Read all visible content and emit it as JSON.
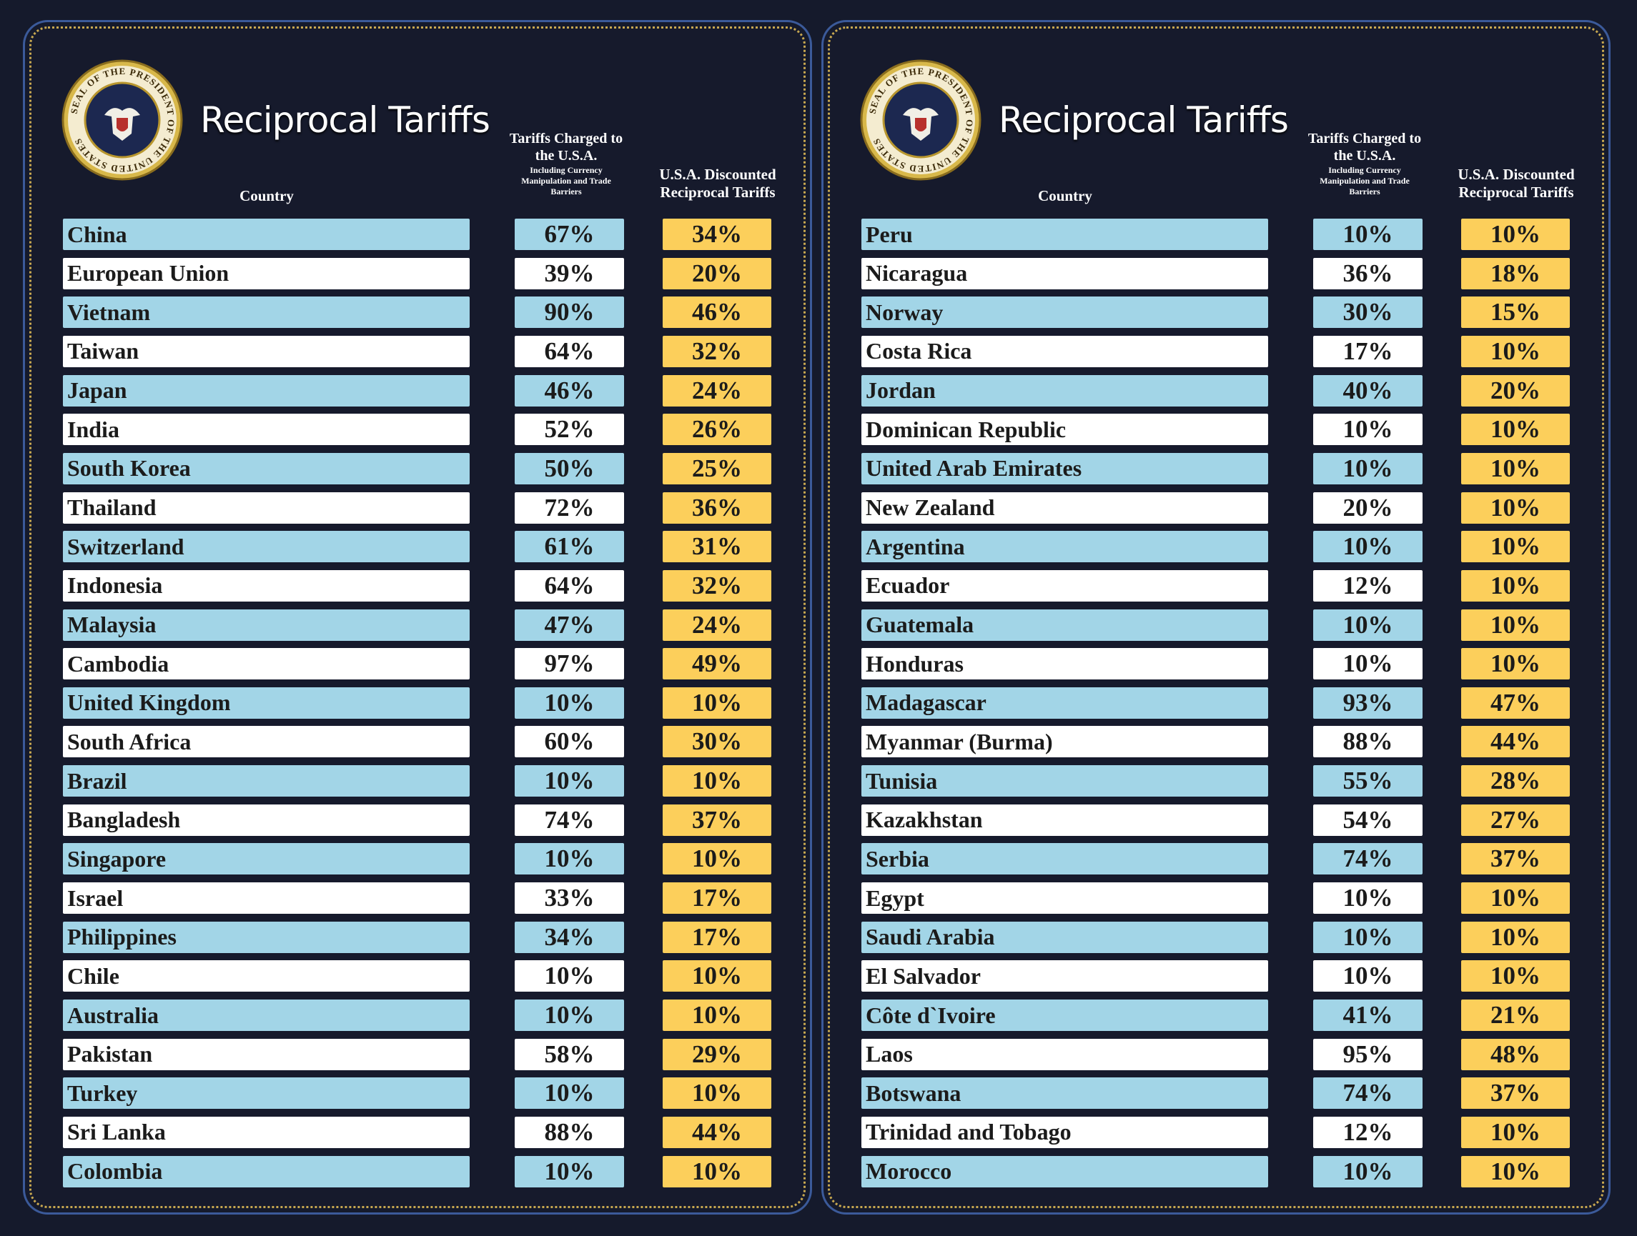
{
  "panels": [
    {
      "seal_text": "SEAL OF THE PRESIDENT OF THE UNITED STATES",
      "title": "Reciprocal Tariffs",
      "headers": {
        "country": "Country",
        "charged": "Tariffs Charged to the U.S.A.",
        "charged_note": "Including Currency Manipulation and Trade Barriers",
        "discounted": "U.S.A. Discounted Reciprocal Tariffs"
      },
      "rows": [
        [
          "China",
          "67%",
          "34%"
        ],
        [
          "European Union",
          "39%",
          "20%"
        ],
        [
          "Vietnam",
          "90%",
          "46%"
        ],
        [
          "Taiwan",
          "64%",
          "32%"
        ],
        [
          "Japan",
          "46%",
          "24%"
        ],
        [
          "India",
          "52%",
          "26%"
        ],
        [
          "South Korea",
          "50%",
          "25%"
        ],
        [
          "Thailand",
          "72%",
          "36%"
        ],
        [
          "Switzerland",
          "61%",
          "31%"
        ],
        [
          "Indonesia",
          "64%",
          "32%"
        ],
        [
          "Malaysia",
          "47%",
          "24%"
        ],
        [
          "Cambodia",
          "97%",
          "49%"
        ],
        [
          "United Kingdom",
          "10%",
          "10%"
        ],
        [
          "South Africa",
          "60%",
          "30%"
        ],
        [
          "Brazil",
          "10%",
          "10%"
        ],
        [
          "Bangladesh",
          "74%",
          "37%"
        ],
        [
          "Singapore",
          "10%",
          "10%"
        ],
        [
          "Israel",
          "33%",
          "17%"
        ],
        [
          "Philippines",
          "34%",
          "17%"
        ],
        [
          "Chile",
          "10%",
          "10%"
        ],
        [
          "Australia",
          "10%",
          "10%"
        ],
        [
          "Pakistan",
          "58%",
          "29%"
        ],
        [
          "Turkey",
          "10%",
          "10%"
        ],
        [
          "Sri Lanka",
          "88%",
          "44%"
        ],
        [
          "Colombia",
          "10%",
          "10%"
        ]
      ]
    },
    {
      "seal_text": "SEAL OF THE PRESIDENT OF THE UNITED STATES",
      "title": "Reciprocal Tariffs",
      "headers": {
        "country": "Country",
        "charged": "Tariffs Charged to the U.S.A.",
        "charged_note": "Including Currency Manipulation and Trade Barriers",
        "discounted": "U.S.A. Discounted Reciprocal Tariffs"
      },
      "rows": [
        [
          "Peru",
          "10%",
          "10%"
        ],
        [
          "Nicaragua",
          "36%",
          "18%"
        ],
        [
          "Norway",
          "30%",
          "15%"
        ],
        [
          "Costa Rica",
          "17%",
          "10%"
        ],
        [
          "Jordan",
          "40%",
          "20%"
        ],
        [
          "Dominican Republic",
          "10%",
          "10%"
        ],
        [
          "United Arab Emirates",
          "10%",
          "10%"
        ],
        [
          "New Zealand",
          "20%",
          "10%"
        ],
        [
          "Argentina",
          "10%",
          "10%"
        ],
        [
          "Ecuador",
          "12%",
          "10%"
        ],
        [
          "Guatemala",
          "10%",
          "10%"
        ],
        [
          "Honduras",
          "10%",
          "10%"
        ],
        [
          "Madagascar",
          "93%",
          "47%"
        ],
        [
          "Myanmar (Burma)",
          "88%",
          "44%"
        ],
        [
          "Tunisia",
          "55%",
          "28%"
        ],
        [
          "Kazakhstan",
          "54%",
          "27%"
        ],
        [
          "Serbia",
          "74%",
          "37%"
        ],
        [
          "Egypt",
          "10%",
          "10%"
        ],
        [
          "Saudi Arabia",
          "10%",
          "10%"
        ],
        [
          "El Salvador",
          "10%",
          "10%"
        ],
        [
          "Côte d`Ivoire",
          "41%",
          "21%"
        ],
        [
          "Laos",
          "95%",
          "48%"
        ],
        [
          "Botswana",
          "74%",
          "37%"
        ],
        [
          "Trinidad and Tobago",
          "12%",
          "10%"
        ],
        [
          "Morocco",
          "10%",
          "10%"
        ]
      ]
    }
  ]
}
